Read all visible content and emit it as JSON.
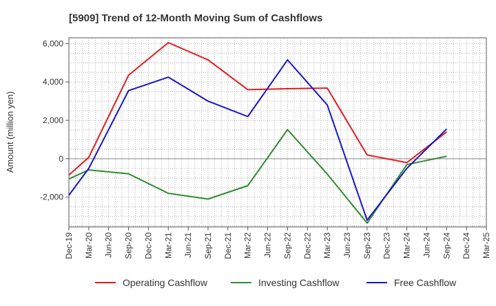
{
  "chart_data": {
    "type": "line",
    "title": "[5909]  Trend of 12-Month Moving Sum of Cashflows",
    "ylabel": "Amount (million yen)",
    "xlabel": "",
    "categories": [
      "Dec-19",
      "Mar-20",
      "Jun-20",
      "Sep-20",
      "Dec-20",
      "Mar-21",
      "Jun-21",
      "Sep-21",
      "Dec-21",
      "Mar-22",
      "Jun-22",
      "Sep-22",
      "Dec-22",
      "Mar-23",
      "Jun-23",
      "Sep-23",
      "Dec-23",
      "Mar-24",
      "Jun-24",
      "Sep-24",
      "Dec-24",
      "Mar-25"
    ],
    "yticks": [
      -2000,
      0,
      2000,
      4000,
      6000
    ],
    "ytick_labels": [
      "-2,000",
      "0",
      "2,000",
      "4,000",
      "6,000"
    ],
    "ylim": [
      -3550,
      6300
    ],
    "grid": true,
    "legend_position": "bottom",
    "series": [
      {
        "name": "Operating Cashflow",
        "color": "#e31a1c",
        "values": [
          -850,
          80,
          null,
          4350,
          null,
          6050,
          null,
          5150,
          null,
          3600,
          null,
          3650,
          null,
          3680,
          null,
          200,
          null,
          -200,
          null,
          1400,
          null,
          null
        ]
      },
      {
        "name": "Investing Cashflow",
        "color": "#2e8b2e",
        "values": [
          -1050,
          -580,
          null,
          -780,
          null,
          -1800,
          null,
          -2100,
          null,
          -1400,
          null,
          1520,
          null,
          -800,
          null,
          -3350,
          null,
          -300,
          null,
          130,
          null,
          null
        ]
      },
      {
        "name": "Free Cashflow",
        "color": "#1414c8",
        "values": [
          -1900,
          -500,
          null,
          3550,
          null,
          4250,
          null,
          3000,
          null,
          2200,
          null,
          5150,
          null,
          2800,
          null,
          -3200,
          null,
          -500,
          null,
          1550,
          null,
          null
        ]
      }
    ]
  }
}
